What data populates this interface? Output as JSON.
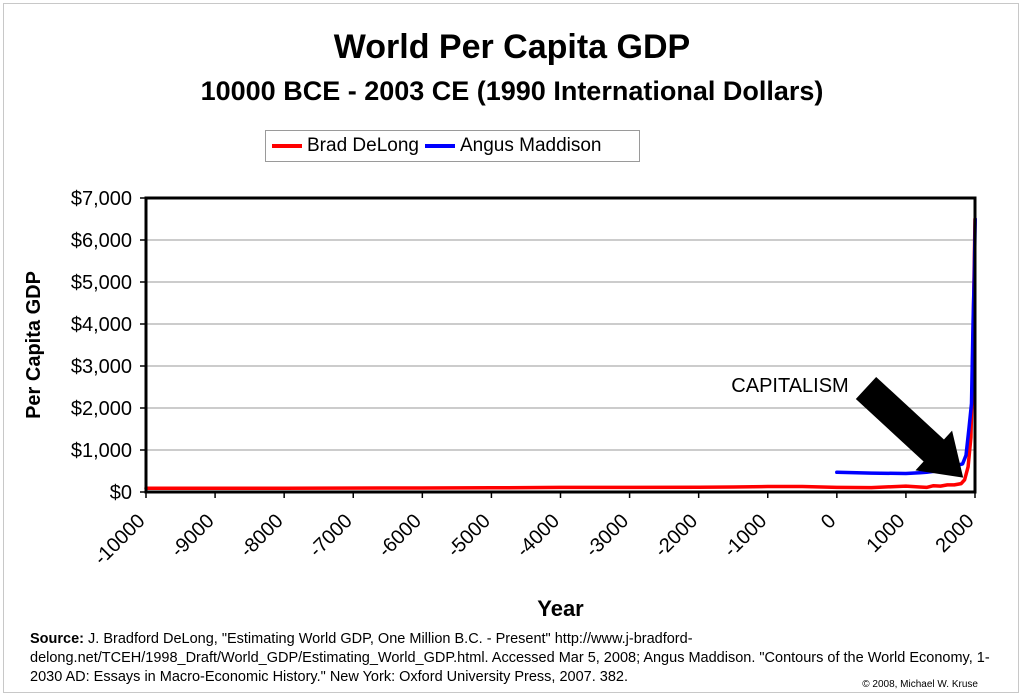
{
  "chart_data": {
    "type": "line",
    "title": "World Per Capita GDP",
    "subtitle": "10000 BCE - 2003 CE (1990 International Dollars)",
    "xlabel": "Year",
    "ylabel": "Per Capita GDP",
    "xlim": [
      -10000,
      2000
    ],
    "ylim": [
      0,
      7000
    ],
    "grid": true,
    "legend_position": "top",
    "x_tick_labels": [
      "-10000",
      "-9000",
      "-8000",
      "-7000",
      "-6000",
      "-5000",
      "-4000",
      "-3000",
      "-2000",
      "-1000",
      "0",
      "1000",
      "2000"
    ],
    "x_ticks": [
      -10000,
      -9000,
      -8000,
      -7000,
      -6000,
      -5000,
      -4000,
      -3000,
      -2000,
      -1000,
      0,
      1000,
      2000
    ],
    "y_tick_labels": [
      "$0",
      "$1,000",
      "$2,000",
      "$3,000",
      "$4,000",
      "$5,000",
      "$6,000",
      "$7,000"
    ],
    "y_ticks": [
      0,
      1000,
      2000,
      3000,
      4000,
      5000,
      6000,
      7000
    ],
    "series": [
      {
        "name": "Brad DeLong",
        "color": "#ff0000",
        "points": [
          [
            -10000,
            90
          ],
          [
            -8000,
            90
          ],
          [
            -6000,
            95
          ],
          [
            -5000,
            100
          ],
          [
            -4000,
            110
          ],
          [
            -3000,
            110
          ],
          [
            -2000,
            115
          ],
          [
            -1500,
            120
          ],
          [
            -1000,
            130
          ],
          [
            -500,
            130
          ],
          [
            0,
            110
          ],
          [
            500,
            105
          ],
          [
            1000,
            140
          ],
          [
            1200,
            120
          ],
          [
            1300,
            110
          ],
          [
            1400,
            150
          ],
          [
            1500,
            140
          ],
          [
            1600,
            170
          ],
          [
            1700,
            170
          ],
          [
            1800,
            200
          ],
          [
            1850,
            290
          ],
          [
            1900,
            600
          ],
          [
            1940,
            1300
          ],
          [
            1960,
            2500
          ],
          [
            1980,
            4500
          ],
          [
            1990,
            5500
          ],
          [
            2000,
            6500
          ]
        ]
      },
      {
        "name": "Angus Maddison",
        "color": "#0000ff",
        "points": [
          [
            0,
            470
          ],
          [
            500,
            450
          ],
          [
            1000,
            440
          ],
          [
            1200,
            460
          ],
          [
            1300,
            470
          ],
          [
            1400,
            490
          ],
          [
            1500,
            520
          ],
          [
            1600,
            590
          ],
          [
            1700,
            620
          ],
          [
            1820,
            670
          ],
          [
            1870,
            875
          ],
          [
            1913,
            1525
          ],
          [
            1950,
            2110
          ],
          [
            1973,
            4090
          ],
          [
            1990,
            5150
          ],
          [
            2003,
            6500
          ]
        ]
      }
    ],
    "annotation": {
      "text": "CAPITALISM",
      "arrow_target": [
        1800,
        200
      ]
    }
  },
  "source_label": "Source:",
  "source_text": " J. Bradford DeLong, \"Estimating World GDP, One Million B.C. - Present\" http://www.j-bradford-delong.net/TCEH/1998_Draft/World_GDP/Estimating_World_GDP.html. Accessed Mar 5, 2008; Angus Maddison. \"Contours of the World Economy, 1-2030 AD: Essays in Macro-Economic History.\" New York: Oxford University Press, 2007. 382.",
  "copyright": "© 2008, Michael W. Kruse"
}
